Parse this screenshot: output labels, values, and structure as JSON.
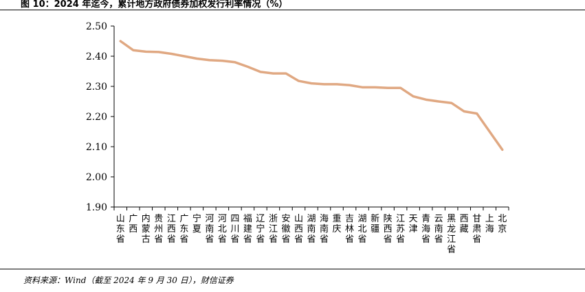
{
  "figure": {
    "title": "图 10：2024 年迄今，累计地方政府债券加权发行利率情况（%）",
    "source": "资料来源：Wind（截至 2024 年 9 月 30 日），财信证券"
  },
  "chart_data": {
    "type": "line",
    "categories": [
      "山东省",
      "广西",
      "内蒙古",
      "贵州省",
      "江西省",
      "广东省",
      "宁夏",
      "河南省",
      "河北省",
      "四川省",
      "福建省",
      "辽宁省",
      "浙江省",
      "安徽省",
      "山西省",
      "湖南省",
      "海南省",
      "重庆",
      "吉林省",
      "湖北省",
      "新疆",
      "陕西省",
      "江苏省",
      "天津",
      "青海省",
      "云南省",
      "黑龙江省",
      "西藏",
      "甘肃省",
      "上海",
      "北京"
    ],
    "values": [
      2.45,
      2.42,
      2.415,
      2.414,
      2.408,
      2.4,
      2.392,
      2.387,
      2.385,
      2.38,
      2.365,
      2.348,
      2.343,
      2.343,
      2.318,
      2.31,
      2.307,
      2.307,
      2.304,
      2.297,
      2.297,
      2.295,
      2.295,
      2.267,
      2.256,
      2.25,
      2.245,
      2.217,
      2.21,
      2.15,
      2.09
    ],
    "ylim": [
      1.9,
      2.5
    ],
    "yticks": [
      "1.90",
      "2.00",
      "2.10",
      "2.20",
      "2.30",
      "2.40",
      "2.50"
    ],
    "line_color": "#E0A882",
    "grid": false
  }
}
